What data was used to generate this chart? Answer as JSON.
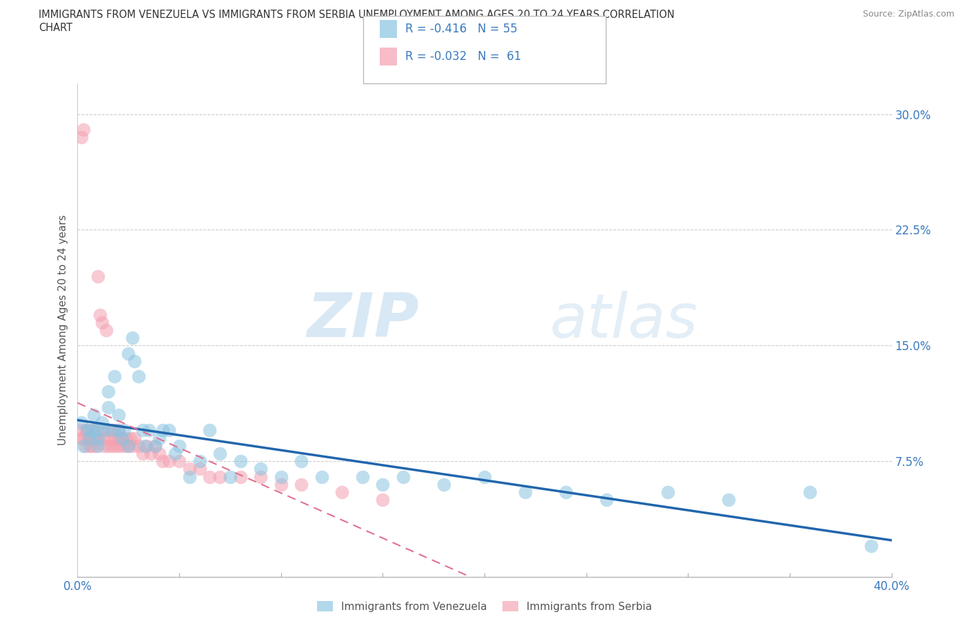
{
  "title_line1": "IMMIGRANTS FROM VENEZUELA VS IMMIGRANTS FROM SERBIA UNEMPLOYMENT AMONG AGES 20 TO 24 YEARS CORRELATION",
  "title_line2": "CHART",
  "source_text": "Source: ZipAtlas.com",
  "ylabel": "Unemployment Among Ages 20 to 24 years",
  "watermark_zip": "ZIP",
  "watermark_atlas": "atlas",
  "xlim": [
    0.0,
    0.4
  ],
  "ylim": [
    0.0,
    0.32
  ],
  "xticks": [
    0.0,
    0.1,
    0.2,
    0.3,
    0.4
  ],
  "xticklabels": [
    "0.0%",
    "",
    "",
    "",
    "40.0%"
  ],
  "yticks": [
    0.0,
    0.075,
    0.15,
    0.225,
    0.3
  ],
  "yticklabels": [
    "",
    "7.5%",
    "15.0%",
    "22.5%",
    "30.0%"
  ],
  "venezuela_color": "#89c4e1",
  "serbia_color": "#f4a0b0",
  "venezuela_line_color": "#2166ac",
  "serbia_line_color": "#e07090",
  "serbia_line_dash": true,
  "R_venezuela": -0.416,
  "N_venezuela": 55,
  "R_serbia": -0.032,
  "N_serbia": 61,
  "legend_label_1": "Immigrants from Venezuela",
  "legend_label_2": "Immigrants from Serbia",
  "venezuela_x": [
    0.002,
    0.003,
    0.005,
    0.006,
    0.007,
    0.008,
    0.009,
    0.01,
    0.01,
    0.012,
    0.013,
    0.015,
    0.015,
    0.017,
    0.018,
    0.02,
    0.02,
    0.022,
    0.023,
    0.025,
    0.025,
    0.027,
    0.028,
    0.03,
    0.032,
    0.033,
    0.035,
    0.038,
    0.04,
    0.042,
    0.045,
    0.048,
    0.05,
    0.055,
    0.06,
    0.065,
    0.07,
    0.075,
    0.08,
    0.09,
    0.1,
    0.11,
    0.12,
    0.14,
    0.15,
    0.16,
    0.18,
    0.2,
    0.22,
    0.24,
    0.26,
    0.29,
    0.32,
    0.36,
    0.39
  ],
  "venezuela_y": [
    0.1,
    0.085,
    0.095,
    0.09,
    0.095,
    0.105,
    0.095,
    0.09,
    0.085,
    0.1,
    0.095,
    0.12,
    0.11,
    0.095,
    0.13,
    0.095,
    0.105,
    0.09,
    0.095,
    0.145,
    0.085,
    0.155,
    0.14,
    0.13,
    0.095,
    0.085,
    0.095,
    0.085,
    0.09,
    0.095,
    0.095,
    0.08,
    0.085,
    0.065,
    0.075,
    0.095,
    0.08,
    0.065,
    0.075,
    0.07,
    0.065,
    0.075,
    0.065,
    0.065,
    0.06,
    0.065,
    0.06,
    0.065,
    0.055,
    0.055,
    0.05,
    0.055,
    0.05,
    0.055,
    0.02
  ],
  "serbia_x": [
    0.001,
    0.002,
    0.002,
    0.003,
    0.003,
    0.004,
    0.004,
    0.005,
    0.005,
    0.006,
    0.006,
    0.007,
    0.007,
    0.008,
    0.008,
    0.009,
    0.009,
    0.01,
    0.01,
    0.011,
    0.012,
    0.012,
    0.013,
    0.013,
    0.014,
    0.015,
    0.015,
    0.016,
    0.017,
    0.018,
    0.018,
    0.019,
    0.02,
    0.02,
    0.021,
    0.022,
    0.023,
    0.024,
    0.025,
    0.026,
    0.027,
    0.028,
    0.03,
    0.032,
    0.034,
    0.036,
    0.038,
    0.04,
    0.042,
    0.045,
    0.05,
    0.055,
    0.06,
    0.065,
    0.07,
    0.08,
    0.09,
    0.1,
    0.11,
    0.13,
    0.15
  ],
  "serbia_y": [
    0.095,
    0.09,
    0.285,
    0.09,
    0.29,
    0.085,
    0.095,
    0.09,
    0.095,
    0.085,
    0.09,
    0.095,
    0.085,
    0.09,
    0.095,
    0.09,
    0.085,
    0.195,
    0.09,
    0.17,
    0.095,
    0.165,
    0.09,
    0.085,
    0.16,
    0.095,
    0.085,
    0.09,
    0.085,
    0.095,
    0.09,
    0.085,
    0.09,
    0.095,
    0.085,
    0.09,
    0.085,
    0.09,
    0.085,
    0.09,
    0.085,
    0.09,
    0.085,
    0.08,
    0.085,
    0.08,
    0.085,
    0.08,
    0.075,
    0.075,
    0.075,
    0.07,
    0.07,
    0.065,
    0.065,
    0.065,
    0.065,
    0.06,
    0.06,
    0.055,
    0.05
  ]
}
